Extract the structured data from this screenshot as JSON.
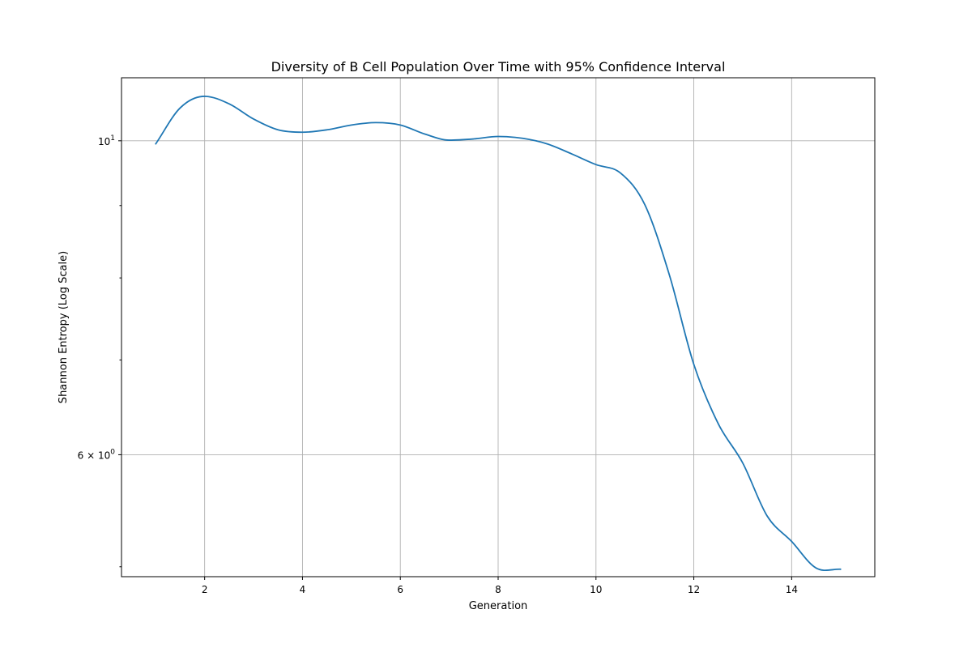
{
  "chart_data": {
    "type": "line",
    "title": "Diversity of B Cell Population Over Time with 95% Confidence Interval",
    "xlabel": "Generation",
    "ylabel": "Shannon Entropy (Log Scale)",
    "xlim": [
      0.3,
      15.7
    ],
    "ylim": [
      4.92,
      11.08
    ],
    "yscale": "log",
    "grid": true,
    "x_ticks": [
      {
        "value": 2,
        "label": "2"
      },
      {
        "value": 4,
        "label": "4"
      },
      {
        "value": 6,
        "label": "6"
      },
      {
        "value": 8,
        "label": "8"
      },
      {
        "value": 10,
        "label": "10"
      },
      {
        "value": 12,
        "label": "12"
      },
      {
        "value": 14,
        "label": "14"
      }
    ],
    "y_major_ticks": [
      {
        "value": 10,
        "base": "10",
        "exp": "1",
        "prefix": ""
      },
      {
        "value": 6,
        "base": "10",
        "exp": "0",
        "prefix": "6 × "
      }
    ],
    "y_minor_ticks": [
      5,
      7,
      8,
      9
    ],
    "series": [
      {
        "color": "#1f77b4",
        "x": [
          1,
          1.5,
          2,
          2.5,
          3,
          3.5,
          4,
          4.5,
          5,
          5.5,
          6,
          6.5,
          7,
          7.5,
          8,
          8.5,
          9,
          9.5,
          10,
          10.5,
          11,
          11.5,
          12,
          12.5,
          13,
          13.5,
          14,
          14.5,
          15
        ],
        "y": [
          9.95,
          10.55,
          10.75,
          10.62,
          10.36,
          10.18,
          10.14,
          10.18,
          10.26,
          10.3,
          10.26,
          10.11,
          10.01,
          10.03,
          10.07,
          10.04,
          9.95,
          9.79,
          9.62,
          9.49,
          9.01,
          8.04,
          6.95,
          6.31,
          5.92,
          5.43,
          5.21,
          4.99,
          4.98
        ]
      }
    ]
  }
}
